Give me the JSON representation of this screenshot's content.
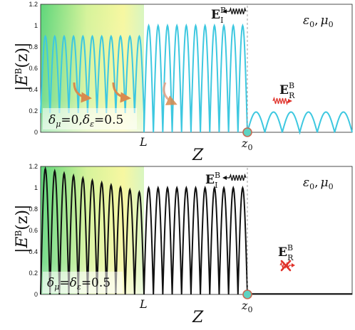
{
  "figure": {
    "ylabel_main": "|E",
    "ylabel_sup": "B",
    "ylabel_arg": "(z)|",
    "xlabel": "Z",
    "marker_L": "L",
    "marker_z0": "z",
    "marker_z0_sub": "0",
    "region_eps": "ε",
    "region_eps_sub": "0",
    "region_sep": ",",
    "region_mu": "μ",
    "region_mu_sub": "0",
    "field_symbol": "E",
    "field_sup": "B",
    "incident_sub": "I",
    "reflected_sub": "R"
  },
  "panels": [
    {
      "condition": {
        "delta": "δ",
        "mu_sub": "μ",
        "eq_mu": "=0,",
        "eps_sub": "ε",
        "eq_eps": "=0.5"
      },
      "line_color": "#3ec8e0",
      "show_curved_arrows": true,
      "reflected_crossed": false
    },
    {
      "condition": {
        "delta": "δ",
        "mu_sub": "μ",
        "eq_mu": "=",
        "eps_sub": "ε",
        "eq_eps": "=0.5"
      },
      "line_color": "#111111",
      "show_curved_arrows": false,
      "reflected_crossed": true
    }
  ],
  "chart_data": [
    {
      "type": "line",
      "ylim": [
        0,
        1.2
      ],
      "yticks": [
        "0",
        "0.2",
        "0.4",
        "0.6",
        "0.8",
        "1",
        "1.2"
      ],
      "markers": {
        "L": 0.29,
        "z0": 0.59,
        "z_end": 0.88
      },
      "series": [
        {
          "segments": [
            {
              "region": "slab",
              "z_from": 0.0,
              "z_to": 0.29,
              "lobes": 11,
              "min": 0.18,
              "max": 0.9
            },
            {
              "region": "vacuum_incident",
              "z_from": 0.29,
              "z_to": 0.59,
              "lobes": 11,
              "min": 0.0,
              "max": 1.0
            },
            {
              "region": "vacuum_reflected",
              "z_from": 0.59,
              "z_to": 0.88,
              "lobes": 6,
              "min": 0.0,
              "max": 0.19
            }
          ]
        }
      ]
    },
    {
      "type": "line",
      "ylim": [
        0,
        1.2
      ],
      "yticks": [
        "0",
        "0.2",
        "0.4",
        "0.6",
        "0.8",
        "1",
        "1.2"
      ],
      "markers": {
        "L": 0.29,
        "z0": 0.59,
        "z_end": 0.88
      },
      "series": [
        {
          "segments": [
            {
              "region": "slab",
              "z_from": 0.0,
              "z_to": 0.29,
              "lobes": 11,
              "min": 0.0,
              "max_start": 1.19,
              "max_end": 0.95
            },
            {
              "region": "vacuum_incident",
              "z_from": 0.29,
              "z_to": 0.59,
              "lobes": 11,
              "min": 0.0,
              "max": 1.0
            },
            {
              "region": "vacuum_reflected",
              "z_from": 0.59,
              "z_to": 0.88,
              "lobes": 0,
              "min": 0.0,
              "max": 0.0
            }
          ]
        }
      ]
    }
  ]
}
